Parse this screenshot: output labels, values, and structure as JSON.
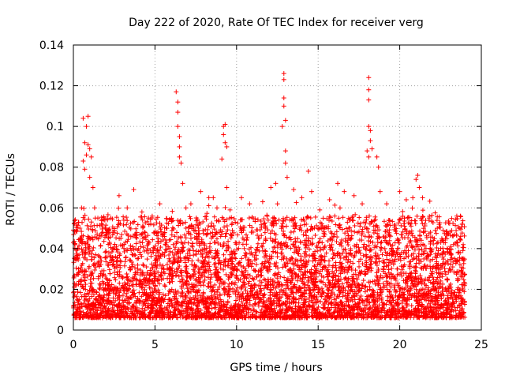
{
  "chart_data": {
    "type": "scatter",
    "title": "Day 222 of 2020, Rate Of TEC Index for receiver verg",
    "xlabel": "GPS time / hours",
    "ylabel": "ROTI / TECUs",
    "xlim": [
      0,
      25
    ],
    "ylim": [
      0,
      0.14
    ],
    "x_ticks": [
      "0",
      "5",
      "10",
      "15",
      "20",
      "25"
    ],
    "y_ticks": [
      "0",
      "0.02",
      "0.04",
      "0.06",
      "0.08",
      "0.1",
      "0.12",
      "0.14"
    ],
    "grid": true,
    "marker": "plus",
    "color": "#ff0000",
    "series": [
      {
        "name": "",
        "points": [
          [
            0.1,
            0.042
          ],
          [
            0.2,
            0.035
          ],
          [
            0.3,
            0.028
          ],
          [
            0.4,
            0.05
          ],
          [
            0.5,
            0.06
          ],
          [
            0.6,
            0.083
          ],
          [
            0.6,
            0.104
          ],
          [
            0.7,
            0.092
          ],
          [
            0.7,
            0.079
          ],
          [
            0.8,
            0.1
          ],
          [
            0.8,
            0.086
          ],
          [
            0.9,
            0.105
          ],
          [
            0.9,
            0.091
          ],
          [
            1.0,
            0.089
          ],
          [
            1.0,
            0.075
          ],
          [
            1.1,
            0.085
          ],
          [
            1.2,
            0.07
          ],
          [
            1.3,
            0.06
          ],
          [
            1.5,
            0.055
          ],
          [
            1.8,
            0.048
          ],
          [
            2.3,
            0.055
          ],
          [
            2.8,
            0.066
          ],
          [
            3.3,
            0.06
          ],
          [
            3.7,
            0.069
          ],
          [
            4.2,
            0.058
          ],
          [
            4.6,
            0.055
          ],
          [
            5.3,
            0.062
          ],
          [
            5.7,
            0.05
          ],
          [
            6.3,
            0.117
          ],
          [
            6.4,
            0.112
          ],
          [
            6.4,
            0.107
          ],
          [
            6.4,
            0.1
          ],
          [
            6.5,
            0.095
          ],
          [
            6.5,
            0.09
          ],
          [
            6.5,
            0.085
          ],
          [
            6.6,
            0.082
          ],
          [
            6.7,
            0.072
          ],
          [
            6.9,
            0.06
          ],
          [
            7.2,
            0.062
          ],
          [
            7.8,
            0.068
          ],
          [
            8.3,
            0.065
          ],
          [
            8.8,
            0.06
          ],
          [
            9.1,
            0.084
          ],
          [
            9.2,
            0.1
          ],
          [
            9.2,
            0.096
          ],
          [
            9.3,
            0.101
          ],
          [
            9.3,
            0.092
          ],
          [
            9.4,
            0.09
          ],
          [
            9.4,
            0.07
          ],
          [
            9.6,
            0.059
          ],
          [
            10.3,
            0.065
          ],
          [
            10.8,
            0.062
          ],
          [
            11.6,
            0.063
          ],
          [
            12.1,
            0.07
          ],
          [
            12.4,
            0.072
          ],
          [
            12.8,
            0.1
          ],
          [
            12.9,
            0.126
          ],
          [
            12.9,
            0.123
          ],
          [
            12.9,
            0.114
          ],
          [
            12.9,
            0.11
          ],
          [
            13.0,
            0.103
          ],
          [
            13.0,
            0.088
          ],
          [
            13.0,
            0.082
          ],
          [
            13.1,
            0.075
          ],
          [
            13.5,
            0.069
          ],
          [
            14.0,
            0.065
          ],
          [
            14.4,
            0.078
          ],
          [
            14.6,
            0.068
          ],
          [
            15.1,
            0.059
          ],
          [
            15.7,
            0.064
          ],
          [
            16.2,
            0.072
          ],
          [
            16.6,
            0.068
          ],
          [
            17.2,
            0.066
          ],
          [
            17.7,
            0.062
          ],
          [
            18.0,
            0.088
          ],
          [
            18.1,
            0.124
          ],
          [
            18.1,
            0.118
          ],
          [
            18.1,
            0.113
          ],
          [
            18.1,
            0.1
          ],
          [
            18.1,
            0.085
          ],
          [
            18.2,
            0.098
          ],
          [
            18.2,
            0.093
          ],
          [
            18.3,
            0.089
          ],
          [
            18.6,
            0.085
          ],
          [
            18.7,
            0.08
          ],
          [
            18.8,
            0.068
          ],
          [
            19.2,
            0.062
          ],
          [
            20.0,
            0.068
          ],
          [
            20.4,
            0.064
          ],
          [
            20.8,
            0.065
          ],
          [
            21.0,
            0.074
          ],
          [
            21.1,
            0.076
          ],
          [
            21.2,
            0.07
          ],
          [
            21.4,
            0.065
          ],
          [
            21.8,
            0.055
          ],
          [
            22.3,
            0.05
          ],
          [
            22.8,
            0.045
          ],
          [
            23.3,
            0.042
          ],
          [
            23.7,
            0.038
          ],
          [
            23.9,
            0.035
          ]
        ]
      }
    ]
  }
}
